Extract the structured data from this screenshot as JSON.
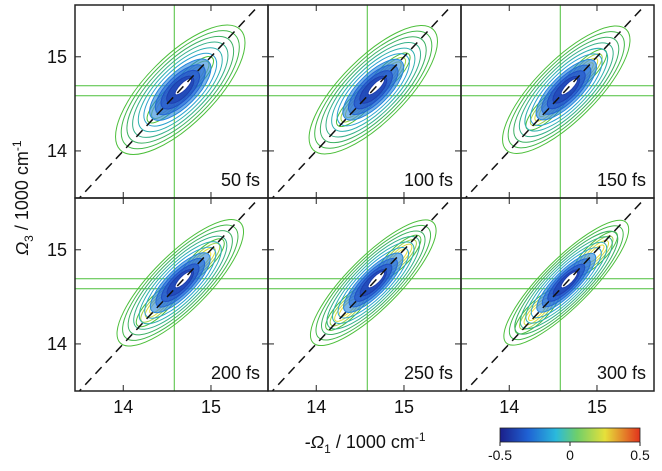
{
  "chart_data": {
    "type": "contour",
    "panels": [
      "50 fs",
      "100 fs",
      "150 fs",
      "200 fs",
      "250 fs",
      "300 fs"
    ],
    "xlim": [
      13.45,
      15.65
    ],
    "xticks": [
      14,
      15
    ],
    "ylim": [
      13.5,
      15.55
    ],
    "yticks": [
      14,
      15
    ],
    "x_label": {
      "prefix": "-Ω",
      "sub": "1",
      "text": " / 1000 cm",
      "sup": "-1"
    },
    "y_label": {
      "prefix": "Ω",
      "sub": "3",
      "text": " / 1000 cm",
      "sup": "-1"
    },
    "colorbar": {
      "lim": [
        -0.5,
        0.5
      ],
      "ticks": [
        -0.5,
        0,
        0.5
      ]
    }
  }
}
